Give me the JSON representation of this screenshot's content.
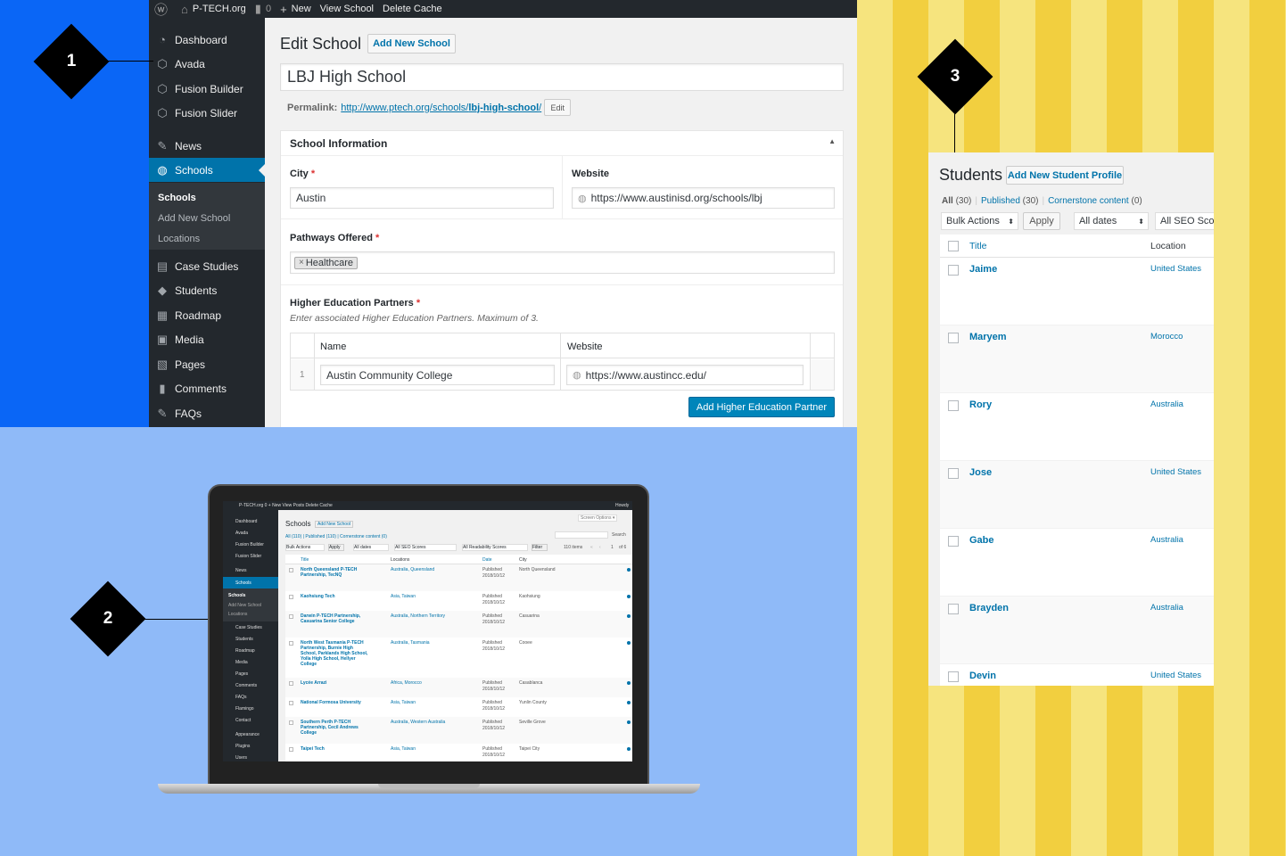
{
  "colors": {
    "blue_bg": "#0a66f6",
    "light_bg": "#8fbaf8",
    "yellow_a": "#f6e47e",
    "yellow_b": "#f2cf3f",
    "wp_dark": "#23282d",
    "wp_blue": "#0073aa"
  },
  "markers": [
    "1",
    "2",
    "3"
  ],
  "adminbar": {
    "site": "P-TECH.org",
    "comments": "0",
    "new": "New",
    "view": "View School",
    "cache": "Delete Cache",
    "icons": [
      "wordpress-icon",
      "home-icon",
      "comment-icon",
      "plus-icon"
    ]
  },
  "sidebar": {
    "items": [
      {
        "label": "Dashboard",
        "icon": "dashboard-icon"
      },
      {
        "label": "Avada",
        "icon": "avada-icon"
      },
      {
        "label": "Fusion Builder",
        "icon": "fusion-icon"
      },
      {
        "label": "Fusion Slider",
        "icon": "fusion-icon"
      },
      {
        "label": "News",
        "icon": "pin-icon"
      },
      {
        "label": "Schools",
        "icon": "globe-icon"
      },
      {
        "label": "Case Studies",
        "icon": "document-icon"
      },
      {
        "label": "Students",
        "icon": "graduation-cap-icon"
      },
      {
        "label": "Roadmap",
        "icon": "table-icon"
      },
      {
        "label": "Media",
        "icon": "media-icon"
      },
      {
        "label": "Pages",
        "icon": "pages-icon"
      },
      {
        "label": "Comments",
        "icon": "comment-icon"
      },
      {
        "label": "FAQs",
        "icon": "pin-icon"
      }
    ],
    "submenu": [
      "Schools",
      "Add New School",
      "Locations"
    ]
  },
  "edit": {
    "title": "Edit School",
    "add_new": "Add New School",
    "post_title": "LBJ High School",
    "permalink_label": "Permalink:",
    "permalink_base": "http://www.ptech.org/schools/",
    "permalink_slug": "lbj-high-school",
    "permalink_end": "/",
    "edit": "Edit",
    "section": "School Information",
    "city_label": "City",
    "city_value": "Austin",
    "website_label": "Website",
    "website_value": "https://www.austinisd.org/schools/lbj",
    "pathways_label": "Pathways Offered",
    "pathway_tag": "Healthcare",
    "partners_label": "Higher Education Partners",
    "partners_hint": "Enter associated Higher Education Partners. Maximum of 3.",
    "col_name": "Name",
    "col_website": "Website",
    "row_num": "1",
    "row_name": "Austin Community College",
    "row_site": "https://www.austincc.edu/",
    "add_partner": "Add Higher Education Partner",
    "req": "*"
  },
  "laptop": {
    "adminbar": "P-TECH.org   0   + New   View Posts   Delete Cache",
    "howdy": "Howdy",
    "screen_options": "Screen Options ▾",
    "title": "Schools",
    "add_new": "Add New School",
    "filters": "All (110) | Published (110) | Cornerstone content (0)",
    "bulk": "Bulk Actions",
    "apply": "Apply",
    "dates": "All dates",
    "seo": "All SEO Scores",
    "read": "All Readability Scores",
    "filter": "Filter",
    "items": "110 items",
    "pager": [
      "«",
      "‹",
      "1",
      "of 6"
    ],
    "search": "Search",
    "cols": [
      "Title",
      "Locations",
      "Date",
      "City"
    ],
    "menu": [
      "Dashboard",
      "Avada",
      "Fusion Builder",
      "Fusion Slider",
      "News",
      "Schools",
      "Schools",
      "Add New School",
      "Locations",
      "Case Studies",
      "Students",
      "Roadmap",
      "Media",
      "Pages",
      "Comments",
      "FAQs",
      "Flamingo",
      "Contact",
      "Appearance",
      "Plugins",
      "Users"
    ],
    "rows": [
      {
        "title": "North Queensland P-TECH Partnership, TecNQ",
        "loc": "Australia, Queensland",
        "status": "Published",
        "date": "2018/10/12",
        "city": "North Queensland"
      },
      {
        "title": "Kaohsiung Tech",
        "loc": "Asia, Taiwan",
        "status": "Published",
        "date": "2018/10/12",
        "city": "Kaohsiung"
      },
      {
        "title": "Darwin P-TECH Partnership, Casuarina Senior College",
        "loc": "Australia, Northern Territory",
        "status": "Published",
        "date": "2018/10/12",
        "city": "Casuarina"
      },
      {
        "title": "North West Tasmania P-TECH Partnership, Burnie High School, Parklands High School, Yolla High School, Hellyer College",
        "loc": "Australia, Tasmania",
        "status": "Published",
        "date": "2018/10/12",
        "city": "Cooee"
      },
      {
        "title": "Lycée Arrazi",
        "loc": "Africa, Morocco",
        "status": "Published",
        "date": "2018/10/12",
        "city": "Casablanca"
      },
      {
        "title": "National Formosa University",
        "loc": "Asia, Taiwan",
        "status": "Published",
        "date": "2018/10/12",
        "city": "Yunlin County"
      },
      {
        "title": "Southern Perth P-TECH Partnership, Cecil Andrews College",
        "loc": "Australia, Western Australia",
        "status": "Published",
        "date": "2018/10/12",
        "city": "Seville Grove"
      },
      {
        "title": "Taipei Tech",
        "loc": "Asia, Taiwan",
        "status": "Published",
        "date": "2018/10/12",
        "city": "Taipei City"
      }
    ]
  },
  "students": {
    "title": "Students",
    "add_new": "Add New Student Profile",
    "filter_all": "All",
    "filter_all_count": "(30)",
    "sep": "|",
    "filter_pub": "Published",
    "filter_pub_count": "(30)",
    "filter_corner": "Cornerstone content",
    "filter_corner_count": "(0)",
    "bulk": "Bulk Actions",
    "apply": "Apply",
    "dates": "All dates",
    "seo": "All SEO Scor",
    "col_title": "Title",
    "col_location": "Location",
    "rows": [
      {
        "name": "Jaime",
        "location": "United States"
      },
      {
        "name": "Maryem",
        "location": "Morocco"
      },
      {
        "name": "Rory",
        "location": "Australia"
      },
      {
        "name": "Jose",
        "location": "United States"
      },
      {
        "name": "Gabe",
        "location": "Australia"
      },
      {
        "name": "Brayden",
        "location": "Australia"
      },
      {
        "name": "Devin",
        "location": "United States"
      }
    ]
  }
}
